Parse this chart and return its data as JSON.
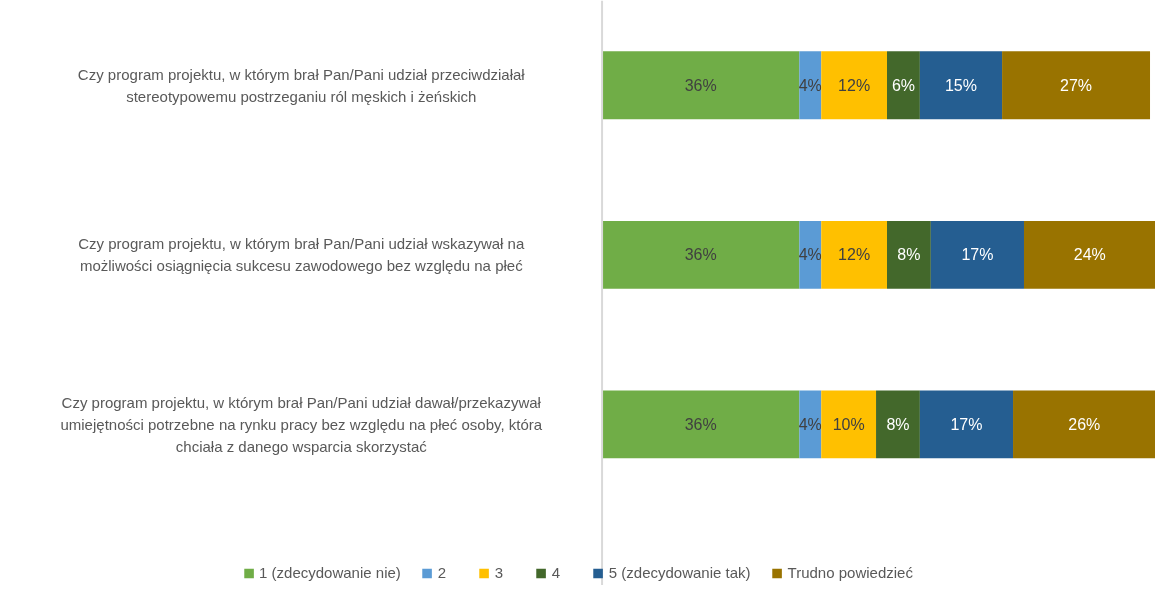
{
  "chart_data": {
    "type": "bar",
    "orientation": "horizontal",
    "stacked": true,
    "tick_labels": false,
    "legend": "bottom",
    "grid": false,
    "categories": [
      "Czy program projektu, w którym brał Pan/Pani udział przeciwdziałał stereotypowemu postrzeganiu ról męskich i żeńskich",
      "Czy program projektu, w którym brał Pan/Pani udział wskazywał na możliwości osiągnięcia sukcesu zawodowego bez względu na płeć",
      "Czy program projektu, w którym brał Pan/Pani udział dawał/przekazywał umiejętności potrzebne na rynku pracy bez względu na płeć osoby, która chciała z danego wsparcia skorzystać"
    ],
    "series": [
      {
        "name": "1 (zdecydowanie nie)",
        "color": "#70ad47",
        "values": [
          36,
          36,
          36
        ],
        "value_labels": [
          "36%",
          "36%",
          "36%"
        ]
      },
      {
        "name": "2",
        "color": "#5b9bd5",
        "values": [
          4,
          4,
          4
        ],
        "value_labels": [
          "4%",
          "4%",
          "4%"
        ]
      },
      {
        "name": "3",
        "color": "#ffc000",
        "values": [
          12,
          12,
          10
        ],
        "value_labels": [
          "12%",
          "12%",
          "10%"
        ]
      },
      {
        "name": "4",
        "color": "#43682b",
        "values": [
          6,
          8,
          8
        ],
        "value_labels": [
          "6%",
          "8%",
          "8%"
        ]
      },
      {
        "name": "5 (zdecydowanie tak)",
        "color": "#255e91",
        "values": [
          15,
          17,
          17
        ],
        "value_labels": [
          "15%",
          "17%",
          "17%"
        ]
      },
      {
        "name": "Trudno powiedzieć",
        "color": "#997300",
        "values": [
          27,
          24,
          26
        ],
        "value_labels": [
          "27%",
          "24%",
          "26%"
        ]
      }
    ]
  }
}
